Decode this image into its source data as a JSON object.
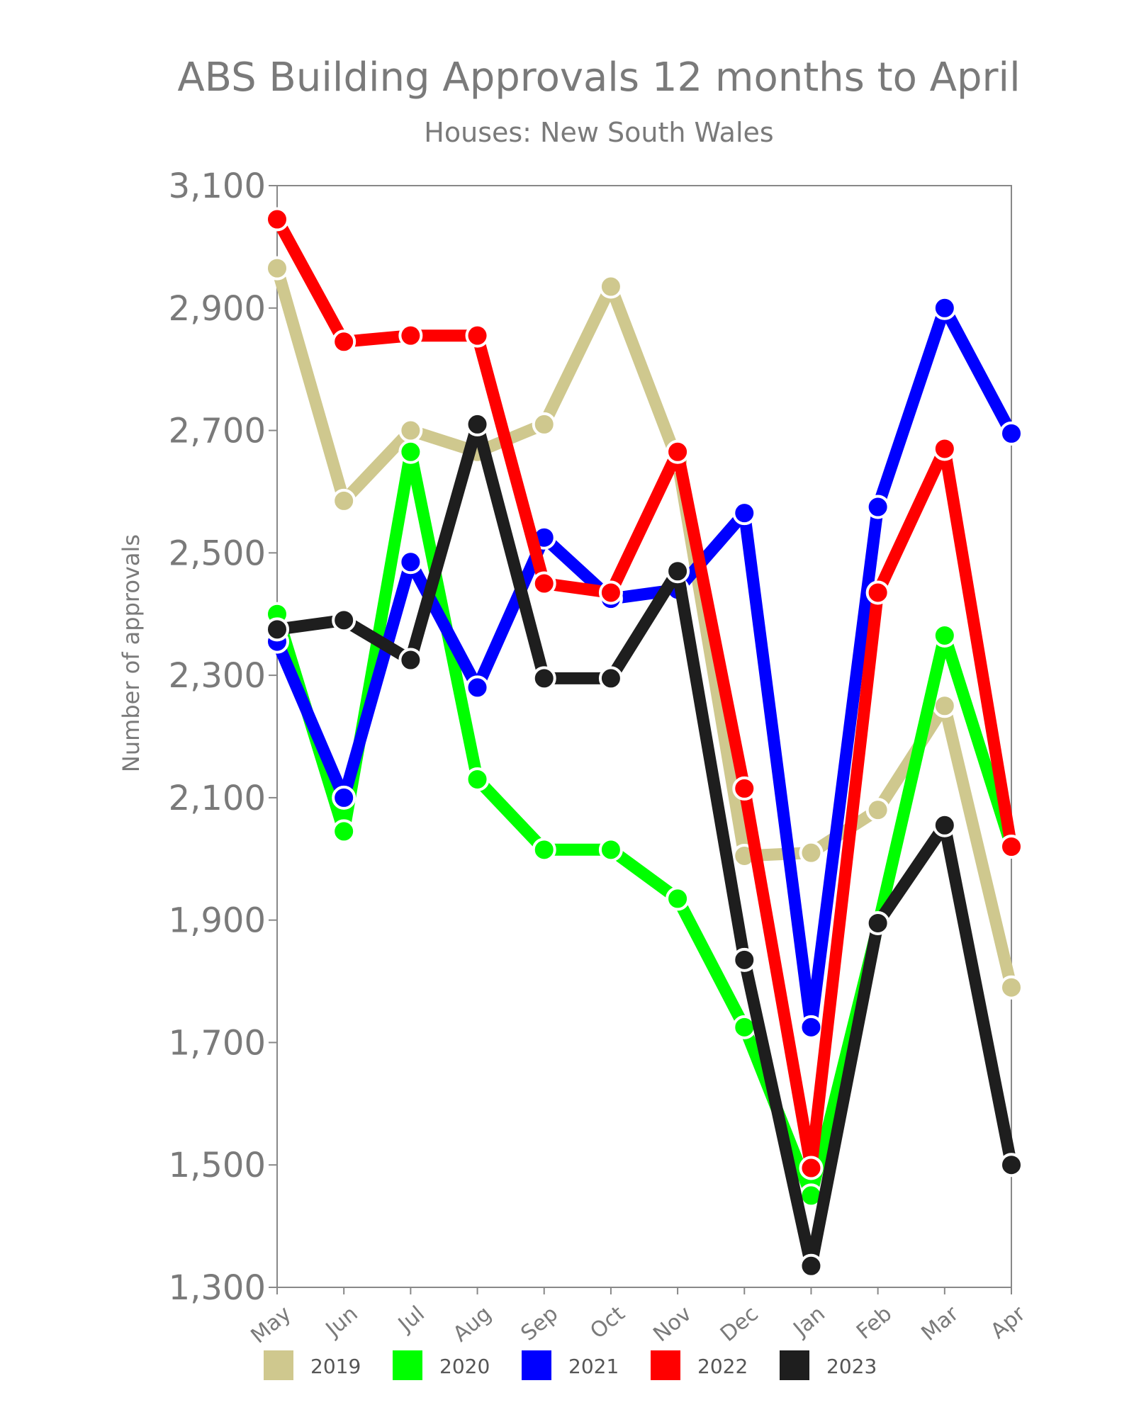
{
  "chart_data": {
    "type": "line",
    "title": "ABS Building Approvals 12 months to April",
    "subtitle": "Houses: New South Wales",
    "ylabel": "Number of approvals",
    "ylim": [
      1300,
      3100
    ],
    "yticks": [
      "1,300",
      "1,500",
      "1,700",
      "1,900",
      "2,100",
      "2,300",
      "2,500",
      "2,700",
      "2,900",
      "3,100"
    ],
    "categories": [
      "May",
      "Jun",
      "Jul",
      "Aug",
      "Sep",
      "Oct",
      "Nov",
      "Dec",
      "Jan",
      "Feb",
      "Mar",
      "Apr"
    ],
    "legend_position": "bottom",
    "series": [
      {
        "name": "2019",
        "color": "#cfc88e",
        "values": [
          2965,
          2585,
          2700,
          2665,
          2710,
          2935,
          2650,
          2005,
          2010,
          2080,
          2250,
          1790
        ]
      },
      {
        "name": "2020",
        "color": "#00ff00",
        "values": [
          2400,
          2045,
          2665,
          2130,
          2015,
          2015,
          1935,
          1725,
          1450,
          1890,
          2365,
          2020
        ]
      },
      {
        "name": "2021",
        "color": "#0000ff",
        "values": [
          2355,
          2100,
          2485,
          2280,
          2525,
          2425,
          2440,
          2565,
          1725,
          2575,
          2900,
          2695
        ]
      },
      {
        "name": "2022",
        "color": "#ff0000",
        "values": [
          3045,
          2845,
          2855,
          2855,
          2450,
          2435,
          2665,
          2115,
          1495,
          2435,
          2670,
          2020
        ]
      },
      {
        "name": "2023",
        "color": "#1e1e1e",
        "values": [
          2375,
          2390,
          2325,
          2710,
          2295,
          2295,
          2470,
          1835,
          1335,
          1895,
          2055,
          1500
        ]
      }
    ]
  }
}
